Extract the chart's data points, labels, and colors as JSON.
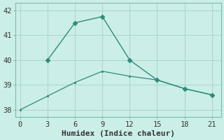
{
  "xlabel": "Humidex (Indice chaleur)",
  "bg_color": "#cceee8",
  "grid_color": "#aad8d0",
  "line_color": "#2d8b7a",
  "line1_x": [
    3,
    6,
    9,
    12,
    15,
    18,
    21
  ],
  "line1_y": [
    40.0,
    41.5,
    41.75,
    40.0,
    39.2,
    38.85,
    38.6
  ],
  "line2_x": [
    0,
    3,
    6,
    9,
    12,
    15,
    18,
    21
  ],
  "line2_y": [
    38.0,
    38.55,
    39.1,
    39.55,
    39.35,
    39.2,
    38.85,
    38.6
  ],
  "xlim": [
    -0.5,
    22
  ],
  "ylim": [
    37.7,
    42.3
  ],
  "xticks": [
    0,
    3,
    6,
    9,
    12,
    15,
    18,
    21
  ],
  "yticks": [
    38,
    39,
    40,
    41,
    42
  ],
  "tick_fontsize": 7.5,
  "xlabel_fontsize": 8
}
